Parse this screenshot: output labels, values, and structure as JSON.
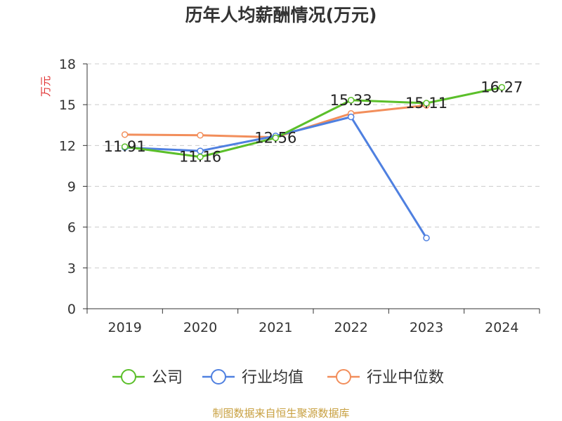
{
  "chart_data": {
    "type": "line",
    "title": "历年人均薪酬情况(万元)",
    "ylabel": "万元",
    "xlabel": "",
    "categories": [
      "2019",
      "2020",
      "2021",
      "2022",
      "2023",
      "2024"
    ],
    "ylim": [
      0,
      18
    ],
    "yticks": [
      0,
      3,
      6,
      9,
      12,
      15,
      18
    ],
    "grid": true,
    "legend_position": "bottom",
    "series": [
      {
        "name": "公司",
        "color": "#5bbf2a",
        "values": [
          11.91,
          11.16,
          12.56,
          15.33,
          15.11,
          16.27
        ]
      },
      {
        "name": "行业均值",
        "color": "#4f80e0",
        "values": [
          11.85,
          11.6,
          12.7,
          14.1,
          5.2,
          null
        ]
      },
      {
        "name": "行业中位数",
        "color": "#f28e5b",
        "values": [
          12.8,
          12.75,
          12.6,
          14.35,
          14.95,
          null
        ]
      }
    ],
    "data_labels": {
      "series": "公司",
      "values": [
        "11.91",
        "11.16",
        "12.56",
        "15.33",
        "15.11",
        "16.27"
      ]
    }
  },
  "source_text": "制图数据来自恒生聚源数据库"
}
